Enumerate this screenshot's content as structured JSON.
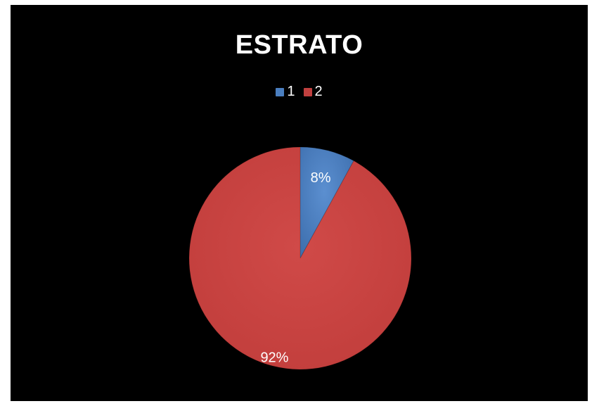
{
  "chart_data": {
    "type": "pie",
    "title": "ESTRATO",
    "categories": [
      "1",
      "2"
    ],
    "values": [
      8,
      92
    ],
    "data_labels": [
      "8%",
      "92%"
    ],
    "colors": [
      "#4a7ebf",
      "#c0403f"
    ],
    "legend_position": "top"
  }
}
